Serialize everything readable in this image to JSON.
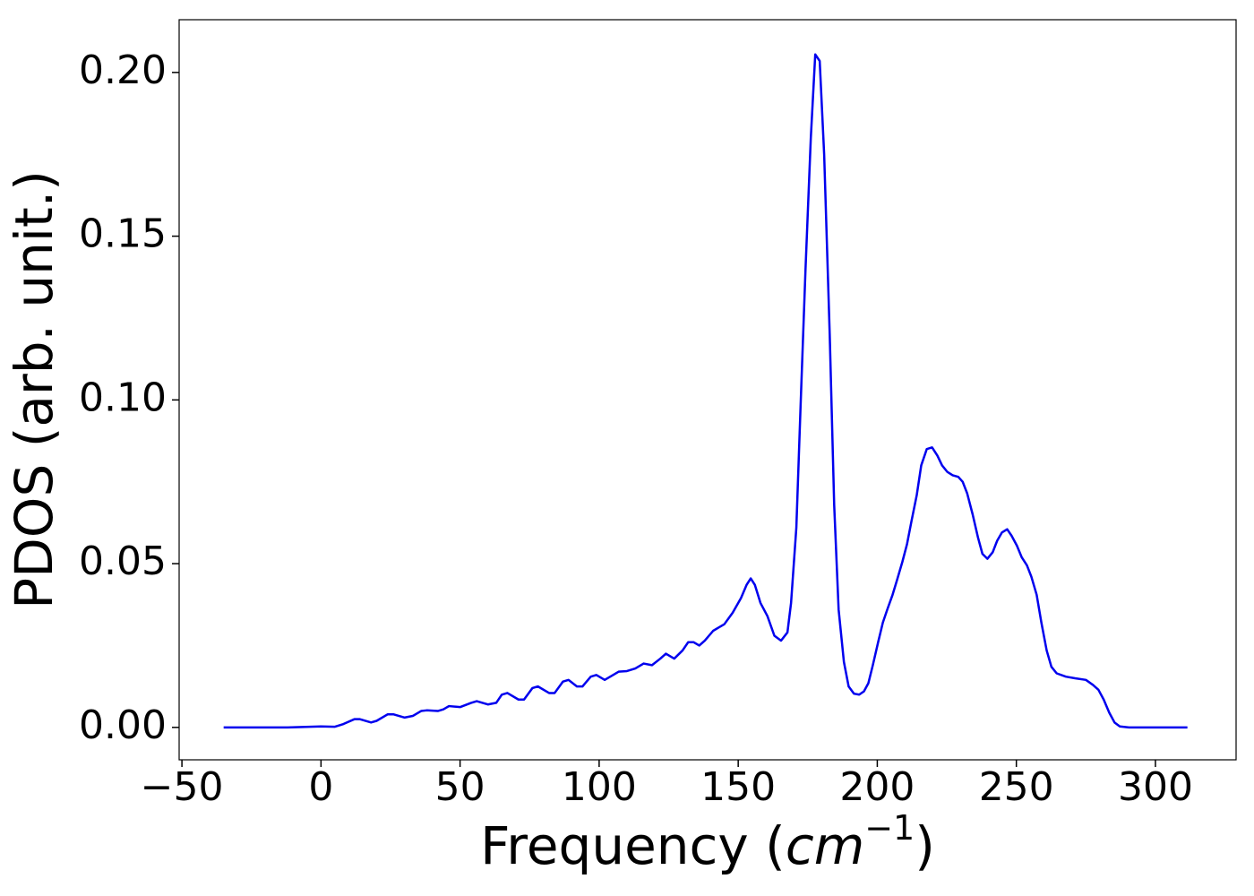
{
  "chart_data": {
    "type": "line",
    "ylabel": "PDOS (arb. unit.)",
    "xlabel": [
      "Frequency (",
      "cm",
      "−1",
      ")"
    ],
    "xlim": [
      -51,
      329
    ],
    "ylim": [
      -0.0099,
      0.2161
    ],
    "xticks": [
      {
        "value": -50,
        "label": "−50"
      },
      0,
      50,
      100,
      150,
      200,
      250,
      300
    ],
    "yticks": [
      {
        "value": 0,
        "label": "0.00"
      },
      {
        "value": 0.05,
        "label": "0.05"
      },
      {
        "value": 0.1,
        "label": "0.10"
      },
      {
        "value": 0.15,
        "label": "0.15"
      },
      {
        "value": 0.2,
        "label": "0.20"
      }
    ],
    "grid": false,
    "series": [
      {
        "name": "PDOS",
        "color": "#0000ee",
        "x": [
          -35,
          -12,
          0,
          5,
          8,
          12,
          14,
          18,
          20,
          24,
          26,
          30,
          33,
          36,
          38,
          42,
          44,
          46,
          50,
          54,
          56,
          60,
          63,
          65,
          67,
          71,
          73,
          76,
          78,
          82,
          84,
          87,
          89,
          92,
          94,
          97,
          99,
          102,
          104,
          107,
          110,
          113,
          116,
          119,
          122,
          124,
          127,
          130,
          132,
          134,
          136,
          138,
          141,
          143,
          145,
          148,
          151,
          153,
          154.5,
          156,
          158,
          160.5,
          163,
          165.4,
          167.7,
          169,
          170.9,
          172.5,
          174.2,
          176.1,
          177.7,
          179.3,
          180.9,
          182.9,
          184.5,
          186.1,
          188,
          189.7,
          191.6,
          193.5,
          195.2,
          196.8,
          198.4,
          200.3,
          202,
          203.6,
          205.5,
          207.1,
          209,
          210.7,
          212.3,
          214.2,
          215.8,
          217.8,
          219.7,
          221.6,
          223.3,
          225.2,
          227.1,
          229.1,
          230.7,
          232.3,
          234.3,
          236.2,
          237.8,
          239.6,
          241.5,
          243.1,
          244.8,
          246.7,
          248.3,
          250.2,
          251.9,
          253.8,
          255.4,
          257.3,
          259,
          260.9,
          262.6,
          264.5,
          267.8,
          271.1,
          275,
          277.5,
          279.5,
          281.4,
          283.4,
          285.3,
          287.2,
          290.5,
          311.5
        ],
        "values": [
          0,
          0,
          0.0003,
          0.0002,
          0.001,
          0.0025,
          0.0025,
          0.0015,
          0.002,
          0.004,
          0.004,
          0.003,
          0.0035,
          0.005,
          0.0052,
          0.005,
          0.0055,
          0.0065,
          0.0062,
          0.0075,
          0.008,
          0.007,
          0.0075,
          0.01,
          0.0105,
          0.0085,
          0.0085,
          0.012,
          0.0125,
          0.0105,
          0.0105,
          0.014,
          0.0145,
          0.0125,
          0.0125,
          0.0155,
          0.016,
          0.0145,
          0.0155,
          0.017,
          0.0172,
          0.018,
          0.0195,
          0.019,
          0.021,
          0.0225,
          0.021,
          0.0235,
          0.026,
          0.026,
          0.025,
          0.0265,
          0.0295,
          0.0305,
          0.0315,
          0.035,
          0.0395,
          0.0435,
          0.0455,
          0.0435,
          0.038,
          0.034,
          0.028,
          0.0265,
          0.029,
          0.038,
          0.061,
          0.1,
          0.14,
          0.18,
          0.2055,
          0.2035,
          0.175,
          0.12,
          0.068,
          0.036,
          0.02,
          0.0125,
          0.0103,
          0.01,
          0.011,
          0.0135,
          0.019,
          0.026,
          0.032,
          0.036,
          0.0405,
          0.045,
          0.0505,
          0.056,
          0.063,
          0.071,
          0.08,
          0.085,
          0.0855,
          0.083,
          0.08,
          0.078,
          0.077,
          0.0765,
          0.075,
          0.0715,
          0.065,
          0.058,
          0.053,
          0.0515,
          0.0535,
          0.057,
          0.0595,
          0.0605,
          0.0585,
          0.0555,
          0.052,
          0.0495,
          0.046,
          0.0405,
          0.032,
          0.0235,
          0.0185,
          0.0165,
          0.0155,
          0.015,
          0.0145,
          0.013,
          0.0115,
          0.0085,
          0.0045,
          0.0015,
          0.0003,
          0,
          0
        ]
      }
    ]
  }
}
